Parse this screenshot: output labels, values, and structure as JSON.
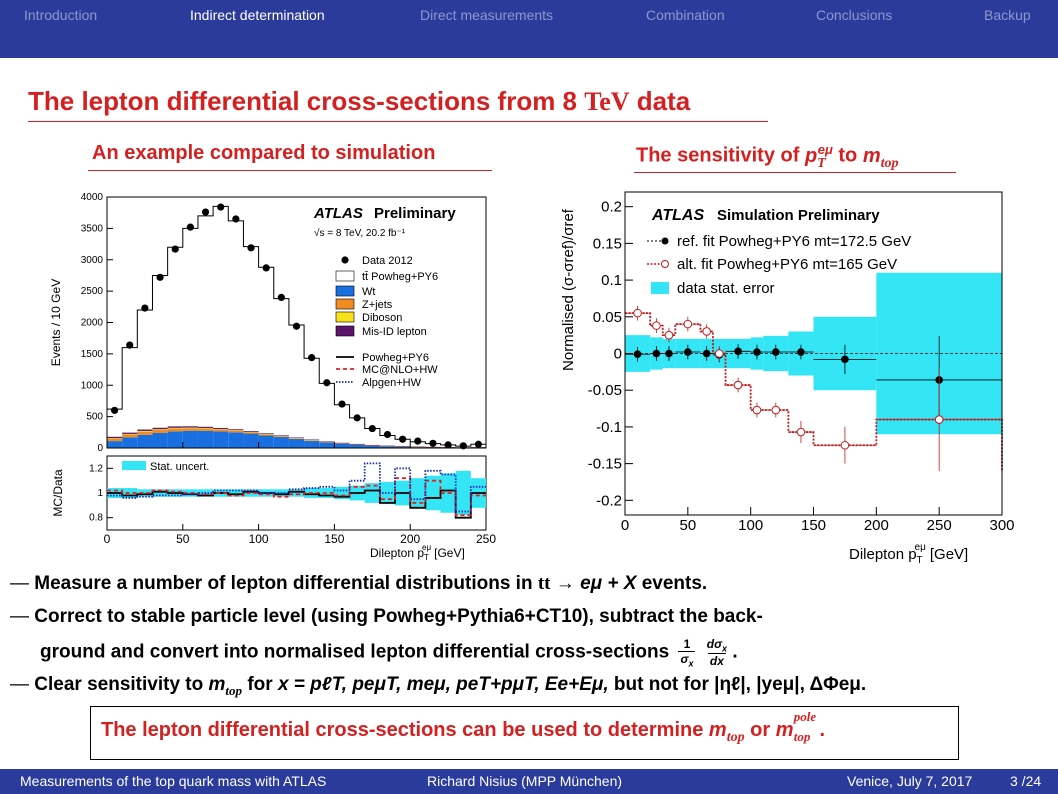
{
  "nav": {
    "items": [
      {
        "label": "Introduction",
        "active": false
      },
      {
        "label": "Indirect determination",
        "active": true
      },
      {
        "label": "Direct measurements",
        "active": false
      },
      {
        "label": "Combination",
        "active": false
      },
      {
        "label": "Conclusions",
        "active": false
      },
      {
        "label": "Backup",
        "active": false
      }
    ]
  },
  "slide": {
    "title_main": "The lepton differential cross-sections from 8",
    "title_unit": "TeV",
    "title_end": "data",
    "left_heading": "An example compared to simulation",
    "right_heading_pre": "The sensitivity of",
    "right_heading_var": "p",
    "right_heading_sub": "T",
    "right_heading_sup": "eμ",
    "right_heading_mid": "to",
    "right_heading_m": "m",
    "right_heading_msub": "top"
  },
  "bullets": {
    "b1_a": "Measure a number of lepton differential distributions in",
    "b1_tt": "tt",
    "b1_arrow": "→",
    "b1_emu": "eμ + X",
    "b1_b": "events.",
    "b2_line1": "Correct to stable particle level (using Powheg+Pythia6+CT10), subtract the back-",
    "b2_line2": "ground and convert into normalised lepton differential cross-sections",
    "b2_frac_num_1": "1",
    "b2_frac_den_1": "σ",
    "b2_frac_den_1_sub": "x",
    "b2_frac_num_2": "dσ",
    "b2_frac_num_2_sub": "x",
    "b2_frac_den_2": "dx",
    "b2_end": ".",
    "b3_a": "Clear sensitivity to",
    "b3_m": "m",
    "b3_msub": "top",
    "b3_b": "for",
    "b3_list": "x = pℓT, peμT, meμ, peT+pμT, Ee+Eμ,",
    "b3_c": "but not for |ηℓ|, |yeμ|, ΔΦeμ."
  },
  "conclusion": {
    "text_a": "The lepton differential cross-sections can be used to determine",
    "m1": "m",
    "m1_sub": "top",
    "or": "or",
    "m2": "m",
    "m2_sub": "top",
    "m2_sup": "pole",
    "end": "."
  },
  "footer": {
    "left": "Measurements of the top quark mass with ATLAS",
    "center": "Richard Nisius  (MPP München)",
    "date": "Venice, July 7, 2017",
    "page": "3 /24"
  },
  "colors": {
    "nav_bg": "#2b3b9c",
    "title_red": "#d42020",
    "wt_blue": "#1a6fe0",
    "zjets_orange": "#f08a22",
    "diboson_yellow": "#f5e21a",
    "misid_purple": "#5a1469",
    "stat_cyan": "#33e5f5",
    "alt_fit_red": "#c41a1a"
  },
  "chart_data": [
    {
      "type": "bar",
      "panel": "left-top",
      "ylabel": "Events / 10 GeV",
      "ylim": [
        0,
        4000
      ],
      "yticks": [
        "0",
        "500",
        "1000",
        "1500",
        "2000",
        "2500",
        "3000",
        "3500",
        "4000"
      ],
      "xlim": [
        0,
        250
      ],
      "xticks": [
        "0",
        "50",
        "100",
        "150",
        "200",
        "250"
      ],
      "xlabel": "Dilepton p",
      "xlabel_sub": "T",
      "xlabel_sup": "eμ",
      "xlabel_unit": "[GeV]",
      "atlas": "ATLAS",
      "atlas_tag": "Preliminary",
      "energy": "√s = 8 TeV, 20.2 fb⁻¹",
      "legend": [
        "Data 2012",
        "tt̄ Powheg+PY6",
        "Wt",
        "Z+jets",
        "Diboson",
        "Mis-ID lepton",
        "Powheg+PY6",
        "MC@NLO+HW",
        "Alpgen+HW"
      ],
      "bin_edges": [
        0,
        10,
        20,
        30,
        40,
        50,
        60,
        70,
        80,
        90,
        100,
        110,
        120,
        130,
        140,
        150,
        160,
        170,
        180,
        190,
        200,
        210,
        220,
        230,
        240,
        250
      ],
      "data": [
        600,
        1640,
        2230,
        2720,
        3170,
        3520,
        3760,
        3840,
        3650,
        3190,
        2870,
        2400,
        1940,
        1440,
        1040,
        700,
        480,
        310,
        215,
        140,
        110,
        75,
        50,
        35,
        60
      ],
      "mc_total": [
        620,
        1600,
        2200,
        2750,
        3200,
        3500,
        3700,
        3850,
        3620,
        3210,
        2880,
        2380,
        1960,
        1430,
        1030,
        690,
        480,
        310,
        200,
        140,
        100,
        70,
        50,
        30,
        60
      ],
      "wt": [
        110,
        170,
        210,
        240,
        265,
        275,
        275,
        265,
        250,
        230,
        200,
        175,
        145,
        115,
        90,
        70,
        55,
        40,
        30,
        25,
        18,
        14,
        10,
        8,
        10
      ],
      "zjets": [
        40,
        45,
        50,
        48,
        45,
        40,
        35,
        30,
        26,
        22,
        18,
        14,
        12,
        10,
        8,
        6,
        5,
        4,
        3,
        2,
        2,
        2,
        1,
        1,
        1
      ],
      "diboson": [
        8,
        10,
        12,
        12,
        12,
        11,
        10,
        9,
        8,
        7,
        6,
        5,
        5,
        4,
        3,
        3,
        2,
        2,
        2,
        1,
        1,
        1,
        1,
        1,
        1
      ],
      "misid": [
        20,
        20,
        22,
        22,
        22,
        20,
        18,
        16,
        14,
        12,
        10,
        9,
        7,
        6,
        5,
        4,
        3,
        3,
        2,
        2,
        1,
        1,
        1,
        1,
        1
      ]
    },
    {
      "type": "line",
      "panel": "left-ratio",
      "ylabel": "MC/Data",
      "ylim": [
        0.7,
        1.3
      ],
      "yticks": [
        "0.8",
        "1",
        "1.2"
      ],
      "legend": [
        "Stat. uncert."
      ],
      "bin_edges": [
        0,
        10,
        20,
        30,
        40,
        50,
        60,
        70,
        80,
        90,
        100,
        110,
        120,
        130,
        140,
        150,
        160,
        170,
        180,
        190,
        200,
        210,
        220,
        230,
        240,
        250
      ],
      "stat_err": [
        0.04,
        0.04,
        0.03,
        0.03,
        0.03,
        0.03,
        0.03,
        0.03,
        0.03,
        0.03,
        0.03,
        0.03,
        0.03,
        0.04,
        0.04,
        0.05,
        0.06,
        0.08,
        0.09,
        0.1,
        0.12,
        0.14,
        0.16,
        0.18,
        0.12
      ],
      "series": [
        {
          "name": "Powheg+PY6",
          "values": [
            1.0,
            0.98,
            0.99,
            1.01,
            1.0,
            0.99,
            0.98,
            1.0,
            0.99,
            1.01,
            1.0,
            0.99,
            1.01,
            0.99,
            0.98,
            0.97,
            1.0,
            1.02,
            0.92,
            1.0,
            0.88,
            0.96,
            1.02,
            0.8,
            1.0
          ]
        },
        {
          "name": "MC@NLO+HW",
          "values": [
            1.02,
            1.0,
            1.0,
            1.02,
            1.01,
            1.0,
            0.99,
            1.0,
            0.98,
            1.0,
            0.99,
            0.97,
            0.99,
            1.0,
            1.0,
            0.98,
            1.05,
            1.06,
            0.95,
            1.12,
            0.92,
            1.1,
            1.0,
            0.82,
            0.98
          ]
        },
        {
          "name": "Alpgen+HW",
          "values": [
            0.98,
            0.96,
            0.97,
            0.98,
            0.98,
            0.99,
            1.0,
            1.02,
            1.02,
            1.02,
            1.0,
            1.0,
            1.03,
            1.04,
            1.05,
            1.02,
            1.1,
            1.24,
            1.0,
            1.2,
            0.95,
            1.18,
            1.15,
            0.85,
            1.05
          ]
        }
      ]
    },
    {
      "type": "line",
      "panel": "right",
      "ylabel": "Normalised (σ-σref)/σref",
      "xlabel": "Dilepton p",
      "xlabel_sub": "T",
      "xlabel_sup": "eμ",
      "xlabel_unit": "[GeV]",
      "xlim": [
        0,
        300
      ],
      "ylim": [
        -0.22,
        0.22
      ],
      "xticks": [
        "0",
        "50",
        "100",
        "150",
        "200",
        "250",
        "300"
      ],
      "yticks": [
        "0.2",
        "0.15",
        "0.1",
        "0.05",
        "0",
        "-0.05",
        "-0.1",
        "-0.15",
        "-0.2"
      ],
      "atlas": "ATLAS",
      "atlas_tag": "Simulation Preliminary",
      "legend": [
        "ref. fit Powheg+PY6 mt=172.5 GeV",
        "alt. fit Powheg+PY6 mt=165 GeV",
        "data stat. error"
      ],
      "bin_edges": [
        0,
        20,
        30,
        40,
        60,
        70,
        80,
        100,
        110,
        130,
        150,
        200,
        300
      ],
      "stat_err": [
        0.025,
        0.022,
        0.02,
        0.02,
        0.02,
        0.02,
        0.02,
        0.022,
        0.024,
        0.03,
        0.05,
        0.11
      ],
      "series": [
        {
          "name": "ref. fit Powheg+PY6 mt=172.5 GeV",
          "x": [
            10,
            25,
            35,
            50,
            65,
            75,
            90,
            105,
            120,
            140,
            175,
            250
          ],
          "values": [
            -0.001,
            0.0,
            0.0,
            0.002,
            0.0,
            -0.002,
            0.003,
            0.002,
            0.002,
            0.002,
            -0.008,
            -0.036
          ],
          "errors": [
            0.01,
            0.01,
            0.01,
            0.01,
            0.01,
            0.01,
            0.01,
            0.01,
            0.01,
            0.01,
            0.02,
            0.06
          ]
        },
        {
          "name": "alt. fit Powheg+PY6 mt=165 GeV",
          "x": [
            10,
            25,
            35,
            50,
            65,
            75,
            90,
            105,
            120,
            140,
            175,
            250
          ],
          "values": [
            0.055,
            0.038,
            0.025,
            0.04,
            0.03,
            0.0,
            -0.043,
            -0.077,
            -0.077,
            -0.107,
            -0.125,
            -0.09
          ],
          "errors": [
            0.01,
            0.01,
            0.01,
            0.01,
            0.01,
            0.01,
            0.01,
            0.01,
            0.01,
            0.015,
            0.025,
            0.07
          ]
        }
      ]
    }
  ]
}
